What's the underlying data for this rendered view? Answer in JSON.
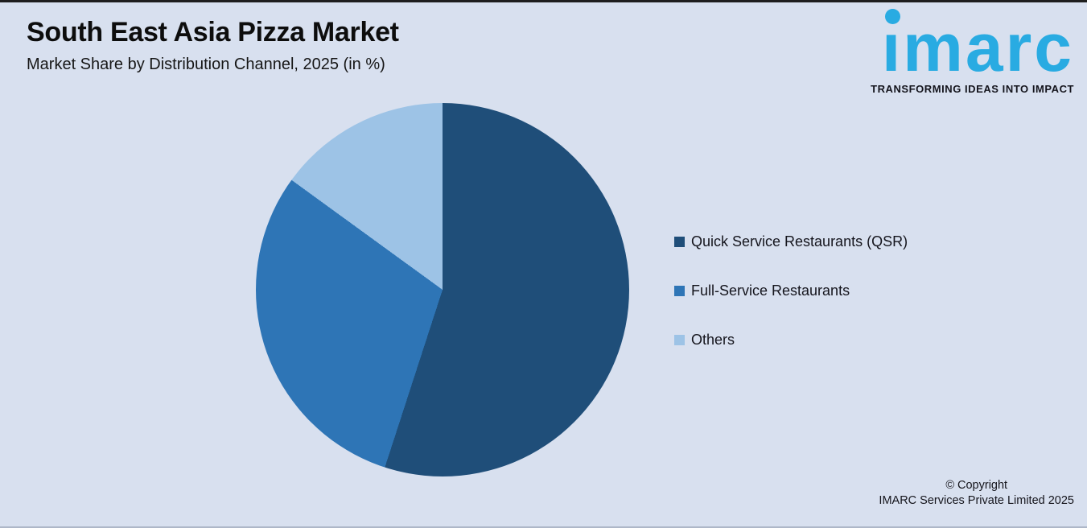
{
  "page": {
    "title": "South East Asia Pizza Market",
    "subtitle": "Market Share by Distribution Channel, 2025 (in %)"
  },
  "logo": {
    "wordmark": "imarc",
    "tagline": "TRANSFORMING IDEAS INTO IMPACT",
    "brand_color": "#29ABE2"
  },
  "chart_data": {
    "type": "pie",
    "title": "South East Asia Pizza Market",
    "subtitle": "Market Share by Distribution Channel, 2025 (in %)",
    "categories": [
      "Quick Service Restaurants (QSR)",
      "Full-Service Restaurants",
      "Others"
    ],
    "values": [
      55,
      30,
      15
    ],
    "unit": "%",
    "colors": [
      "#1F4E79",
      "#2E75B6",
      "#9DC3E6"
    ],
    "legend_position": "right",
    "start_angle_deg": 0,
    "direction": "clockwise",
    "data_labels_visible": false
  },
  "theme": {
    "background": "#D8E0EF",
    "text": "#111111"
  },
  "footer": {
    "copyright_line1": "© Copyright",
    "copyright_line2": "IMARC Services Private Limited 2025"
  }
}
